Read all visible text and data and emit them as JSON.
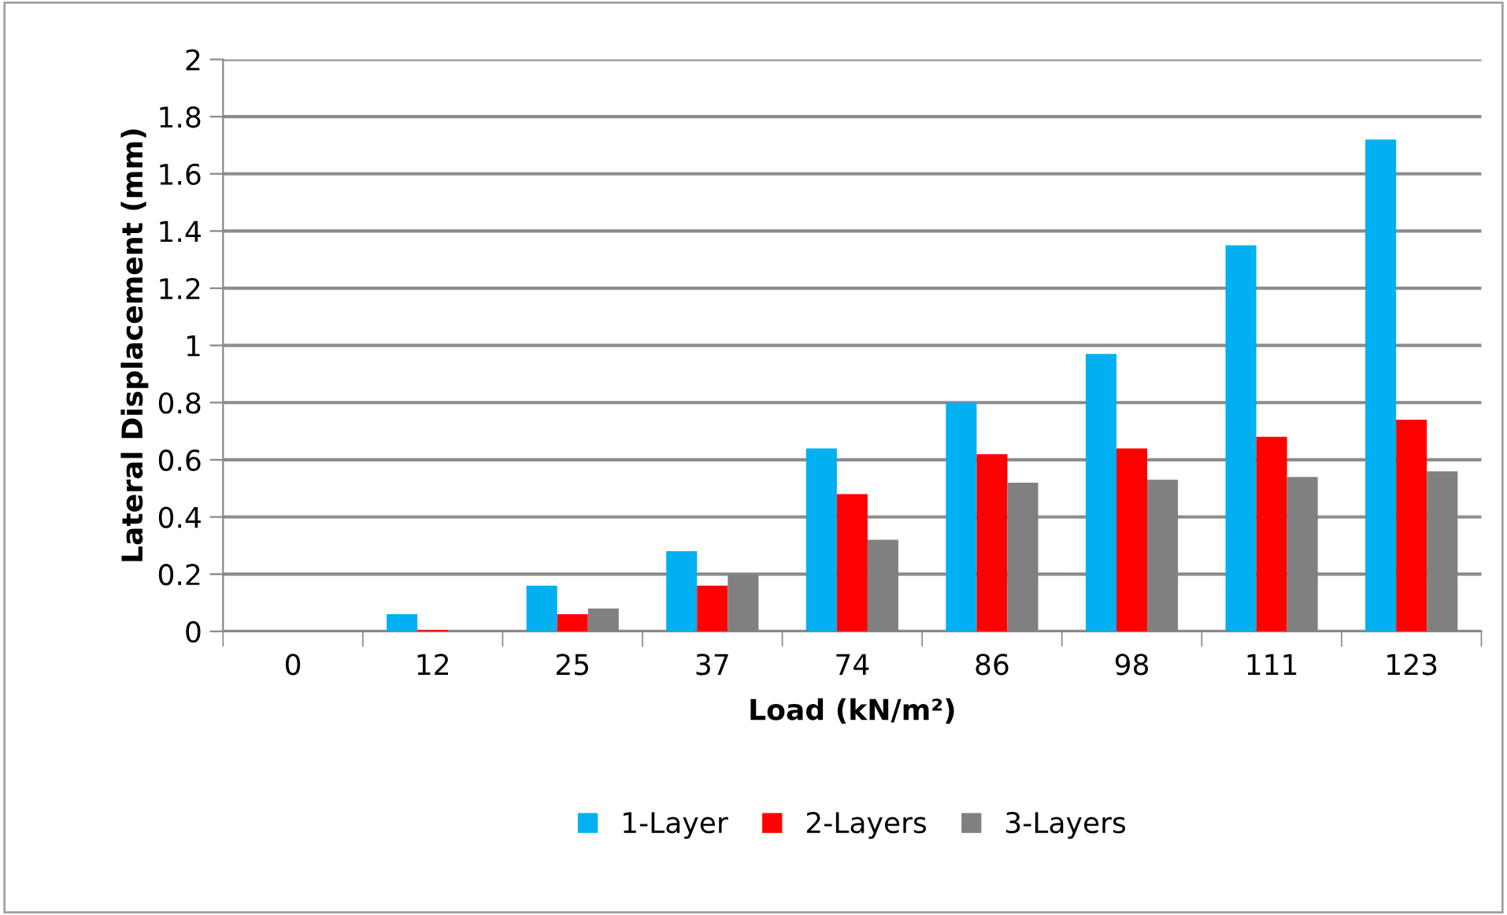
{
  "chart_data": {
    "type": "bar",
    "xlabel": "Load (kN/m²)",
    "ylabel": "Lateral Displacement (mm)",
    "categories": [
      "0",
      "12",
      "25",
      "37",
      "74",
      "86",
      "98",
      "111",
      "123"
    ],
    "series": [
      {
        "name": "1-Layer",
        "color": "#00b0f0",
        "values": [
          0,
          0.06,
          0.16,
          0.28,
          0.64,
          0.8,
          0.97,
          1.35,
          1.72
        ]
      },
      {
        "name": "2-Layers",
        "color": "#ff0000",
        "values": [
          0,
          0.005,
          0.06,
          0.16,
          0.48,
          0.62,
          0.64,
          0.68,
          0.74
        ]
      },
      {
        "name": "3-Layers",
        "color": "#808080",
        "values": [
          0,
          0,
          0.08,
          0.2,
          0.32,
          0.52,
          0.53,
          0.54,
          0.56
        ]
      }
    ],
    "ylim": [
      0,
      2
    ],
    "yticks": [
      0,
      0.2,
      0.4,
      0.6,
      0.8,
      1,
      1.2,
      1.4,
      1.6,
      1.8,
      2
    ],
    "grid": "y",
    "legend": "bottom"
  }
}
